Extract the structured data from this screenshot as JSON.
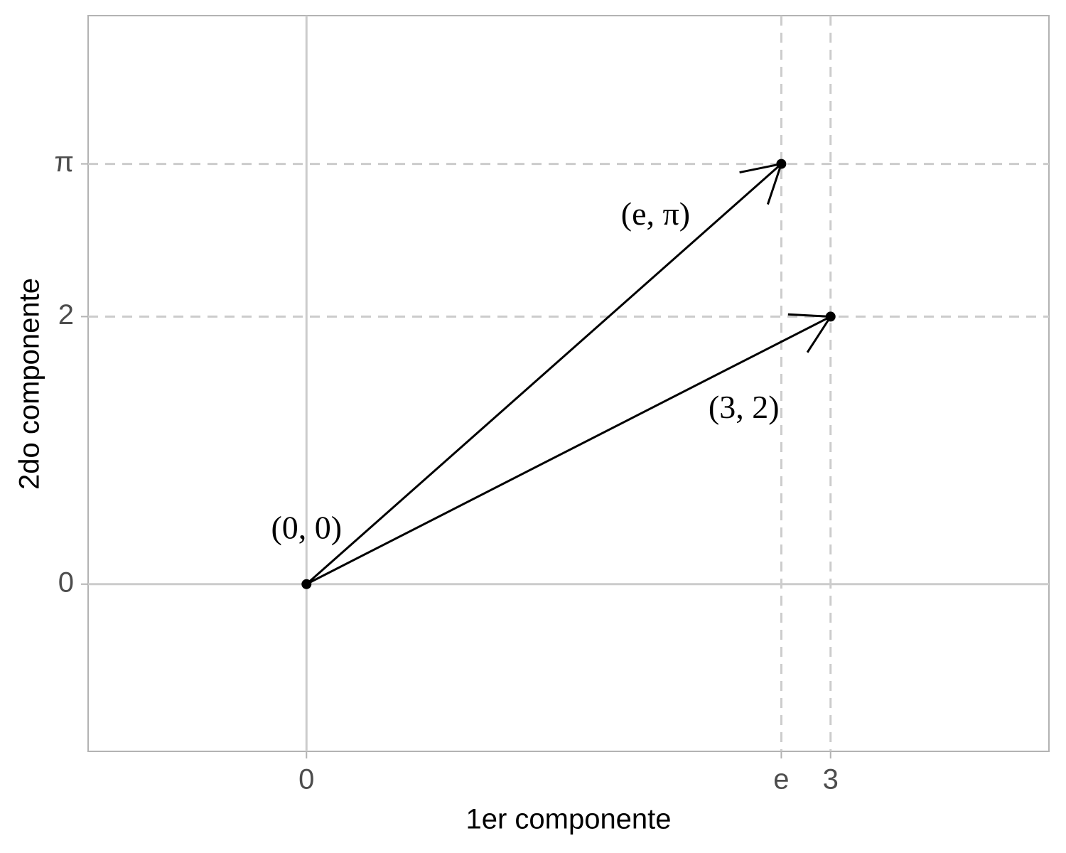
{
  "chart_data": {
    "type": "vector",
    "x_label": "1er componente",
    "y_label": "2do componente",
    "points": {
      "x": [
        0,
        2.718,
        3
      ],
      "y": [
        0,
        3.1416,
        2
      ],
      "labels": [
        "(0, 0)",
        "(e, π)",
        "(3, 2)"
      ]
    },
    "xlim": [
      -1.25,
      4.25
    ],
    "ylim": [
      -1.25,
      4.25
    ],
    "xticks": [
      0,
      {
        "value": 2.718,
        "label": "e"
      },
      3
    ],
    "yticks": [
      0,
      2,
      {
        "value": 3.1416,
        "label": "π"
      }
    ],
    "grid": true,
    "color": "#000000"
  }
}
